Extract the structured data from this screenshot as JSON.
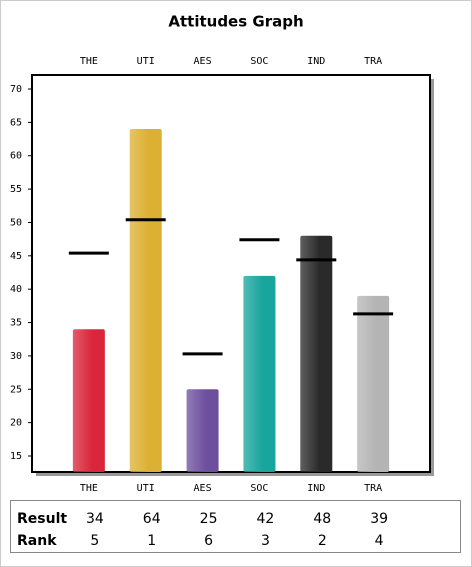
{
  "chart_data": {
    "type": "bar",
    "title": "Attitudes Graph",
    "categories": [
      "THE",
      "UTI",
      "AES",
      "SOC",
      "IND",
      "TRA"
    ],
    "values": [
      34,
      64,
      25,
      42,
      48,
      39
    ],
    "colors": [
      "#d9263a",
      "#dcb032",
      "#6e4f9e",
      "#17a59d",
      "#2a2a2a",
      "#b4b4b4"
    ],
    "markers": [
      45.4,
      50.4,
      30.3,
      47.4,
      44.4,
      36.3
    ],
    "ylim": [
      12.6,
      72.1
    ],
    "yticks": [
      15,
      20,
      25,
      30,
      35,
      40,
      45,
      50,
      55,
      60,
      65,
      70
    ]
  },
  "results_table": {
    "row_labels": [
      "Result",
      "Rank"
    ],
    "ranks": [
      5,
      1,
      6,
      3,
      2,
      4
    ]
  }
}
